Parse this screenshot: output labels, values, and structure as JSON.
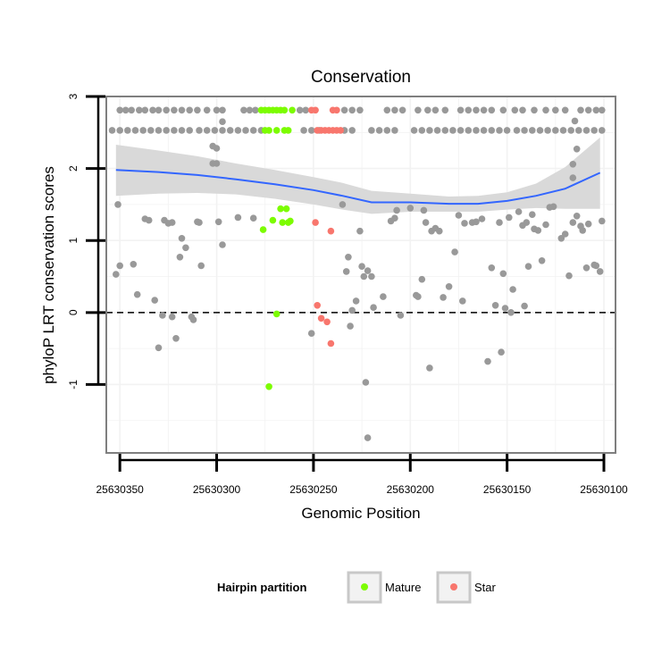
{
  "chart_data": {
    "type": "scatter",
    "title": "Conservation",
    "xlabel": "Genomic Position",
    "ylabel": "phyloP LRT conservation scores",
    "xlim": [
      25630357,
      25630094
    ],
    "x_reversed": true,
    "ylim": [
      -1.95,
      3.0
    ],
    "xticks": [
      25630350,
      25630300,
      25630250,
      25630200,
      25630150,
      25630100
    ],
    "xtick_labels": [
      "25630350",
      "25630300",
      "25630250",
      "25630200",
      "25630150",
      "25630100"
    ],
    "yticks": [
      -1,
      0,
      1,
      2,
      3
    ],
    "ytick_labels": [
      "-1",
      "0",
      "1",
      "2",
      "3"
    ],
    "grid": true,
    "reference_line": {
      "y": 0,
      "style": "dashed",
      "color": "#000000"
    },
    "legend": {
      "title": "Hairpin partition",
      "placement": "bottom",
      "entries": [
        {
          "label": "Mature",
          "color": "#7CFC00"
        },
        {
          "label": "Star",
          "color": "#F8766D"
        }
      ]
    },
    "colors": {
      "other": "#999999",
      "mature": "#7CFC00",
      "star": "#F8766D",
      "smooth": "#3366FF",
      "ribbon": "#D9D9D9"
    },
    "smooth": {
      "x": [
        25630352,
        25630330,
        25630310,
        25630290,
        25630270,
        25630250,
        25630235,
        25630220,
        25630200,
        25630180,
        25630165,
        25630150,
        25630135,
        25630120,
        25630102
      ],
      "y": [
        1.98,
        1.95,
        1.91,
        1.85,
        1.78,
        1.7,
        1.62,
        1.53,
        1.53,
        1.51,
        1.51,
        1.55,
        1.62,
        1.72,
        1.94
      ],
      "ymin": [
        1.62,
        1.65,
        1.66,
        1.64,
        1.58,
        1.5,
        1.43,
        1.37,
        1.4,
        1.4,
        1.4,
        1.43,
        1.45,
        1.44,
        1.44
      ],
      "ymax": [
        2.33,
        2.25,
        2.17,
        2.07,
        1.98,
        1.88,
        1.8,
        1.69,
        1.65,
        1.61,
        1.62,
        1.67,
        1.79,
        2.02,
        2.43
      ]
    },
    "series": [
      {
        "name": "",
        "group": "other",
        "points": [
          [
            25630350,
            2.81
          ],
          [
            25630347,
            2.81
          ],
          [
            25630344,
            2.81
          ],
          [
            25630340,
            2.81
          ],
          [
            25630337,
            2.81
          ],
          [
            25630333,
            2.81
          ],
          [
            25630330,
            2.81
          ],
          [
            25630326,
            2.81
          ],
          [
            25630322,
            2.81
          ],
          [
            25630318,
            2.81
          ],
          [
            25630314,
            2.81
          ],
          [
            25630310,
            2.81
          ],
          [
            25630305,
            2.81
          ],
          [
            25630300,
            2.81
          ],
          [
            25630297,
            2.81
          ],
          [
            25630286,
            2.81
          ],
          [
            25630283,
            2.81
          ],
          [
            25630280,
            2.81
          ],
          [
            25630257,
            2.81
          ],
          [
            25630254,
            2.81
          ],
          [
            25630234,
            2.81
          ],
          [
            25630230,
            2.81
          ],
          [
            25630226,
            2.81
          ],
          [
            25630212,
            2.81
          ],
          [
            25630208,
            2.81
          ],
          [
            25630204,
            2.81
          ],
          [
            25630196,
            2.81
          ],
          [
            25630191,
            2.81
          ],
          [
            25630187,
            2.81
          ],
          [
            25630182,
            2.81
          ],
          [
            25630174,
            2.81
          ],
          [
            25630170,
            2.81
          ],
          [
            25630166,
            2.81
          ],
          [
            25630162,
            2.81
          ],
          [
            25630158,
            2.81
          ],
          [
            25630152,
            2.81
          ],
          [
            25630146,
            2.81
          ],
          [
            25630142,
            2.81
          ],
          [
            25630136,
            2.81
          ],
          [
            25630130,
            2.81
          ],
          [
            25630125,
            2.81
          ],
          [
            25630120,
            2.81
          ],
          [
            25630112,
            2.81
          ],
          [
            25630108,
            2.81
          ],
          [
            25630104,
            2.81
          ],
          [
            25630101,
            2.81
          ],
          [
            25630354,
            2.53
          ],
          [
            25630350,
            2.53
          ],
          [
            25630346,
            2.53
          ],
          [
            25630342,
            2.53
          ],
          [
            25630338,
            2.53
          ],
          [
            25630334,
            2.53
          ],
          [
            25630330,
            2.53
          ],
          [
            25630326,
            2.53
          ],
          [
            25630322,
            2.53
          ],
          [
            25630318,
            2.53
          ],
          [
            25630314,
            2.53
          ],
          [
            25630309,
            2.53
          ],
          [
            25630305,
            2.53
          ],
          [
            25630301,
            2.53
          ],
          [
            25630297,
            2.53
          ],
          [
            25630293,
            2.53
          ],
          [
            25630289,
            2.53
          ],
          [
            25630285,
            2.53
          ],
          [
            25630281,
            2.53
          ],
          [
            25630277,
            2.53
          ],
          [
            25630255,
            2.53
          ],
          [
            25630251,
            2.53
          ],
          [
            25630247,
            2.53
          ],
          [
            25630234,
            2.53
          ],
          [
            25630230,
            2.53
          ],
          [
            25630220,
            2.53
          ],
          [
            25630216,
            2.53
          ],
          [
            25630212,
            2.53
          ],
          [
            25630208,
            2.53
          ],
          [
            25630198,
            2.53
          ],
          [
            25630194,
            2.53
          ],
          [
            25630190,
            2.53
          ],
          [
            25630186,
            2.53
          ],
          [
            25630182,
            2.53
          ],
          [
            25630178,
            2.53
          ],
          [
            25630174,
            2.53
          ],
          [
            25630170,
            2.53
          ],
          [
            25630166,
            2.53
          ],
          [
            25630162,
            2.53
          ],
          [
            25630158,
            2.53
          ],
          [
            25630154,
            2.53
          ],
          [
            25630150,
            2.53
          ],
          [
            25630145,
            2.53
          ],
          [
            25630141,
            2.53
          ],
          [
            25630137,
            2.53
          ],
          [
            25630133,
            2.53
          ],
          [
            25630129,
            2.53
          ],
          [
            25630125,
            2.53
          ],
          [
            25630121,
            2.53
          ],
          [
            25630117,
            2.53
          ],
          [
            25630113,
            2.53
          ],
          [
            25630109,
            2.53
          ],
          [
            25630105,
            2.53
          ],
          [
            25630101,
            2.53
          ],
          [
            25630302,
            2.31
          ],
          [
            25630300,
            2.28
          ],
          [
            25630297,
            2.65
          ],
          [
            25630302,
            2.07
          ],
          [
            25630300,
            2.07
          ],
          [
            25630115,
            2.66
          ],
          [
            25630114,
            2.27
          ],
          [
            25630116,
            2.06
          ],
          [
            25630116,
            1.87
          ],
          [
            25630351,
            1.5
          ],
          [
            25630350,
            0.65
          ],
          [
            25630352,
            0.53
          ],
          [
            25630343,
            0.67
          ],
          [
            25630341,
            0.25
          ],
          [
            25630337,
            1.3
          ],
          [
            25630335,
            1.28
          ],
          [
            25630332,
            0.17
          ],
          [
            25630330,
            -0.49
          ],
          [
            25630328,
            -0.04
          ],
          [
            25630327,
            1.28
          ],
          [
            25630325,
            1.24
          ],
          [
            25630323,
            1.25
          ],
          [
            25630323,
            -0.06
          ],
          [
            25630321,
            -0.36
          ],
          [
            25630319,
            0.77
          ],
          [
            25630318,
            1.03
          ],
          [
            25630316,
            0.9
          ],
          [
            25630313,
            -0.06
          ],
          [
            25630312,
            -0.1
          ],
          [
            25630310,
            1.26
          ],
          [
            25630309,
            1.25
          ],
          [
            25630308,
            0.65
          ],
          [
            25630299,
            1.26
          ],
          [
            25630297,
            0.94
          ],
          [
            25630289,
            1.32
          ],
          [
            25630281,
            1.31
          ],
          [
            25630251,
            -0.29
          ],
          [
            25630235,
            1.5
          ],
          [
            25630233,
            0.57
          ],
          [
            25630232,
            0.77
          ],
          [
            25630231,
            -0.19
          ],
          [
            25630230,
            0.03
          ],
          [
            25630228,
            0.16
          ],
          [
            25630226,
            1.13
          ],
          [
            25630225,
            0.64
          ],
          [
            25630224,
            0.5
          ],
          [
            25630223,
            -0.97
          ],
          [
            25630222,
            -1.74
          ],
          [
            25630222,
            0.58
          ],
          [
            25630220,
            0.5
          ],
          [
            25630219,
            0.07
          ],
          [
            25630214,
            0.22
          ],
          [
            25630210,
            1.27
          ],
          [
            25630208,
            1.31
          ],
          [
            25630207,
            1.42
          ],
          [
            25630205,
            -0.04
          ],
          [
            25630200,
            1.45
          ],
          [
            25630197,
            0.24
          ],
          [
            25630196,
            0.22
          ],
          [
            25630194,
            0.46
          ],
          [
            25630193,
            1.42
          ],
          [
            25630192,
            1.25
          ],
          [
            25630190,
            -0.77
          ],
          [
            25630189,
            1.13
          ],
          [
            25630187,
            1.17
          ],
          [
            25630185,
            1.13
          ],
          [
            25630183,
            0.21
          ],
          [
            25630180,
            0.36
          ],
          [
            25630177,
            0.84
          ],
          [
            25630175,
            1.35
          ],
          [
            25630173,
            0.16
          ],
          [
            25630172,
            1.24
          ],
          [
            25630168,
            1.25
          ],
          [
            25630166,
            1.26
          ],
          [
            25630163,
            1.3
          ],
          [
            25630160,
            -0.68
          ],
          [
            25630158,
            0.62
          ],
          [
            25630156,
            0.1
          ],
          [
            25630154,
            1.25
          ],
          [
            25630153,
            -0.55
          ],
          [
            25630152,
            0.54
          ],
          [
            25630151,
            0.06
          ],
          [
            25630149,
            1.32
          ],
          [
            25630148,
            0.0
          ],
          [
            25630147,
            0.32
          ],
          [
            25630144,
            1.4
          ],
          [
            25630142,
            1.21
          ],
          [
            25630141,
            0.09
          ],
          [
            25630140,
            1.25
          ],
          [
            25630139,
            0.64
          ],
          [
            25630137,
            1.36
          ],
          [
            25630136,
            1.16
          ],
          [
            25630134,
            1.14
          ],
          [
            25630132,
            0.72
          ],
          [
            25630130,
            1.22
          ],
          [
            25630128,
            1.46
          ],
          [
            25630126,
            1.47
          ],
          [
            25630122,
            1.03
          ],
          [
            25630120,
            1.09
          ],
          [
            25630118,
            0.51
          ],
          [
            25630116,
            1.25
          ],
          [
            25630114,
            1.34
          ],
          [
            25630112,
            1.2
          ],
          [
            25630111,
            1.14
          ],
          [
            25630109,
            0.62
          ],
          [
            25630108,
            1.23
          ],
          [
            25630105,
            0.66
          ],
          [
            25630104,
            0.65
          ],
          [
            25630102,
            0.57
          ],
          [
            25630101,
            1.27
          ]
        ]
      },
      {
        "name": "Mature",
        "group": "mature",
        "points": [
          [
            25630277,
            2.81
          ],
          [
            25630275,
            2.81
          ],
          [
            25630273,
            2.81
          ],
          [
            25630271,
            2.81
          ],
          [
            25630269,
            2.81
          ],
          [
            25630267,
            2.81
          ],
          [
            25630265,
            2.81
          ],
          [
            25630261,
            2.81
          ],
          [
            25630275,
            2.53
          ],
          [
            25630273,
            2.53
          ],
          [
            25630269,
            2.53
          ],
          [
            25630265,
            2.53
          ],
          [
            25630263,
            2.53
          ],
          [
            25630276,
            1.15
          ],
          [
            25630271,
            1.28
          ],
          [
            25630267,
            1.44
          ],
          [
            25630266,
            1.25
          ],
          [
            25630264,
            1.44
          ],
          [
            25630263,
            1.25
          ],
          [
            25630262,
            1.27
          ],
          [
            25630269,
            -0.02
          ],
          [
            25630273,
            -1.03
          ]
        ]
      },
      {
        "name": "Star",
        "group": "star",
        "points": [
          [
            25630251,
            2.81
          ],
          [
            25630249,
            2.81
          ],
          [
            25630240,
            2.81
          ],
          [
            25630238,
            2.81
          ],
          [
            25630248,
            2.53
          ],
          [
            25630246,
            2.53
          ],
          [
            25630244,
            2.53
          ],
          [
            25630242,
            2.53
          ],
          [
            25630240,
            2.53
          ],
          [
            25630238,
            2.53
          ],
          [
            25630236,
            2.53
          ],
          [
            25630249,
            1.25
          ],
          [
            25630241,
            1.13
          ],
          [
            25630248,
            0.1
          ],
          [
            25630246,
            -0.08
          ],
          [
            25630243,
            -0.13
          ],
          [
            25630241,
            -0.43
          ]
        ]
      }
    ]
  }
}
